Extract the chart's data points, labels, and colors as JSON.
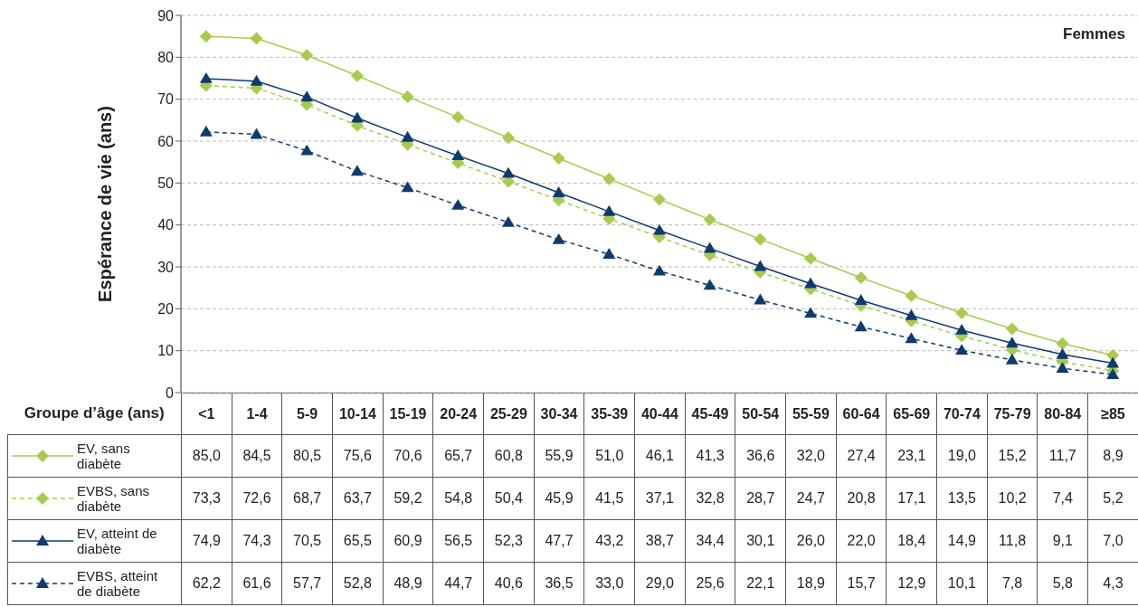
{
  "chart_data": {
    "type": "line",
    "ylabel": "Espérance de vie (ans)",
    "xlabel": "Groupe d’âge (ans)",
    "annotations": [
      "Femmes"
    ],
    "categories": [
      "<1",
      "1-4",
      "5-9",
      "10-14",
      "15-19",
      "20-24",
      "25-29",
      "30-34",
      "35-39",
      "40-44",
      "45-49",
      "50-54",
      "55-59",
      "60-64",
      "65-69",
      "70-74",
      "75-79",
      "80-84",
      "≥85"
    ],
    "ylim": [
      0,
      90
    ],
    "yticks": [
      0,
      10,
      20,
      30,
      40,
      50,
      60,
      70,
      80,
      90
    ],
    "grid": "y",
    "legend": "bottom",
    "series": [
      {
        "name": "EV, sans diabète",
        "color": "#a8cb4e",
        "marker": "diamond",
        "line_style": "solid",
        "values": [
          85.0,
          84.5,
          80.5,
          75.6,
          70.6,
          65.7,
          60.8,
          55.9,
          51.0,
          46.1,
          41.3,
          36.6,
          32.0,
          27.4,
          23.1,
          19.0,
          15.2,
          11.7,
          8.9
        ],
        "value_labels": [
          "85,0",
          "84,5",
          "80,5",
          "75,6",
          "70,6",
          "65,7",
          "60,8",
          "55,9",
          "51,0",
          "46,1",
          "41,3",
          "36,6",
          "32,0",
          "27,4",
          "23,1",
          "19,0",
          "15,2",
          "11,7",
          "8,9"
        ]
      },
      {
        "name": "EVBS, sans diabète",
        "color": "#a8cb4e",
        "marker": "diamond",
        "line_style": "dashed",
        "values": [
          73.3,
          72.6,
          68.7,
          63.7,
          59.2,
          54.8,
          50.4,
          45.9,
          41.5,
          37.1,
          32.8,
          28.7,
          24.7,
          20.8,
          17.1,
          13.5,
          10.2,
          7.4,
          5.2
        ],
        "value_labels": [
          "73,3",
          "72,6",
          "68,7",
          "63,7",
          "59,2",
          "54,8",
          "50,4",
          "45,9",
          "41,5",
          "37,1",
          "32,8",
          "28,7",
          "24,7",
          "20,8",
          "17,1",
          "13,5",
          "10,2",
          "7,4",
          "5,2"
        ]
      },
      {
        "name": "EV, atteint de diabète",
        "color": "#0d3b6e",
        "marker": "triangle",
        "line_style": "solid",
        "values": [
          74.9,
          74.3,
          70.5,
          65.5,
          60.9,
          56.5,
          52.3,
          47.7,
          43.2,
          38.7,
          34.4,
          30.1,
          26.0,
          22.0,
          18.4,
          14.9,
          11.8,
          9.1,
          7.0
        ],
        "value_labels": [
          "74,9",
          "74,3",
          "70,5",
          "65,5",
          "60,9",
          "56,5",
          "52,3",
          "47,7",
          "43,2",
          "38,7",
          "34,4",
          "30,1",
          "26,0",
          "22,0",
          "18,4",
          "14,9",
          "11,8",
          "9,1",
          "7,0"
        ]
      },
      {
        "name": "EVBS, atteint de diabète",
        "color": "#0d3b6e",
        "marker": "triangle",
        "line_style": "dashed",
        "values": [
          62.2,
          61.6,
          57.7,
          52.8,
          48.9,
          44.7,
          40.6,
          36.5,
          33.0,
          29.0,
          25.6,
          22.1,
          18.9,
          15.7,
          12.9,
          10.1,
          7.8,
          5.8,
          4.3
        ],
        "value_labels": [
          "62,2",
          "61,6",
          "57,7",
          "52,8",
          "48,9",
          "44,7",
          "40,6",
          "36,5",
          "33,0",
          "29,0",
          "25,6",
          "22,1",
          "18,9",
          "15,7",
          "12,9",
          "10,1",
          "7,8",
          "5,8",
          "4,3"
        ]
      }
    ]
  }
}
